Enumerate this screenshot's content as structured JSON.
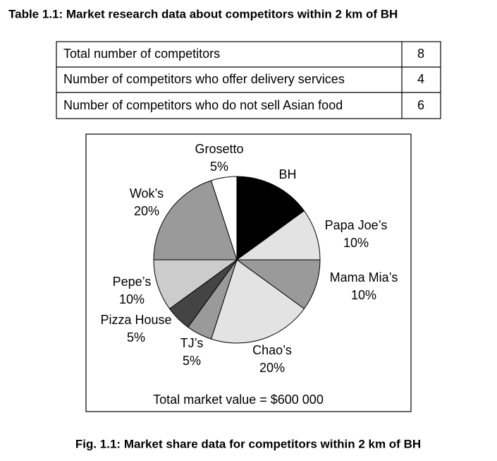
{
  "table": {
    "title": "Table 1.1: Market research data about competitors within 2 km of BH",
    "rows": [
      [
        "Total number of competitors",
        8
      ],
      [
        "Number of competitors who offer delivery services",
        4
      ],
      [
        "Number of competitors who do not sell Asian food",
        6
      ]
    ]
  },
  "chart_data": {
    "type": "pie",
    "categories": [
      "BH",
      "Papa Joe’s",
      "Mama Mia’s",
      "Chao’s",
      "TJ’s",
      "Pizza House",
      "Pepe’s",
      "Wok’s",
      "Grosetto"
    ],
    "values": [
      15,
      10,
      10,
      20,
      5,
      5,
      10,
      20,
      5
    ],
    "value_labels": [
      null,
      "10%",
      "10%",
      "20%",
      "5%",
      "5%",
      "10%",
      "20%",
      "5%"
    ],
    "colors": [
      "#000000",
      "#e3e3e3",
      "#9a9a9a",
      "#e3e3e3",
      "#9a9a9a",
      "#444444",
      "#cccccc",
      "#9a9a9a",
      "#ffffff"
    ],
    "annotation": "Total market value = $600 000"
  },
  "caption": "Fig. 1.1: Market share data for competitors within 2 km of BH"
}
